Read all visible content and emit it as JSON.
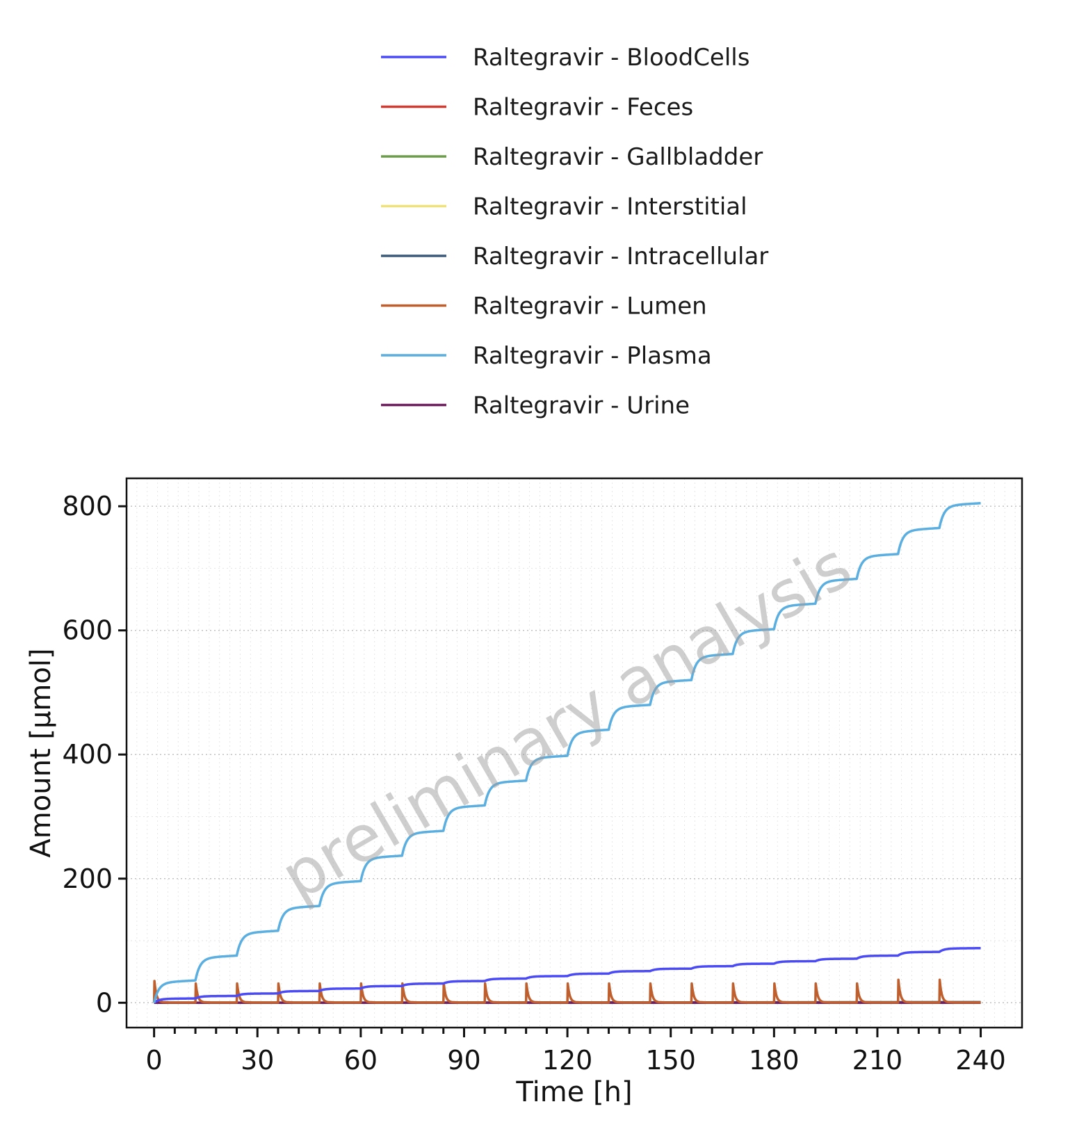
{
  "chart_data": {
    "type": "line",
    "xlabel": "Time [h]",
    "ylabel": "Amount [µmol]",
    "xlim": [
      -8,
      252
    ],
    "ylim": [
      -40,
      845
    ],
    "xticks": [
      0,
      30,
      60,
      90,
      120,
      150,
      180,
      210,
      240
    ],
    "yticks": [
      0,
      200,
      400,
      600,
      800
    ],
    "grid": true,
    "legend_position": "top",
    "watermark": "preliminary analysis",
    "dosing_interval_h": 12,
    "series": [
      {
        "name": "Raltegravir - BloodCells",
        "color": "#4b4bf5",
        "x": [
          0,
          12,
          24,
          36,
          48,
          60,
          72,
          84,
          96,
          108,
          120,
          132,
          144,
          156,
          168,
          180,
          192,
          204,
          216,
          228,
          240
        ],
        "y": [
          0,
          7,
          11,
          15,
          19,
          23,
          27,
          31,
          35,
          39,
          43,
          47,
          51,
          55,
          59,
          63,
          67,
          71,
          76,
          82,
          88
        ]
      },
      {
        "name": "Raltegravir - Feces",
        "color": "#d03b32",
        "x": [
          0,
          240
        ],
        "y": [
          0,
          0
        ]
      },
      {
        "name": "Raltegravir - Gallbladder",
        "color": "#6b9e48",
        "x": [
          0,
          240
        ],
        "y": [
          0,
          0
        ]
      },
      {
        "name": "Raltegravir - Interstitial",
        "color": "#f0e27a",
        "x": [
          0,
          240
        ],
        "y": [
          0,
          1
        ]
      },
      {
        "name": "Raltegravir - Intracellular",
        "color": "#3d5a78",
        "x": [
          0,
          240
        ],
        "y": [
          0,
          1
        ]
      },
      {
        "name": "Raltegravir - Lumen",
        "color": "#bf5f2e",
        "x": [
          0,
          12,
          24,
          36,
          48,
          60,
          72,
          84,
          96,
          108,
          120,
          132,
          144,
          156,
          168,
          180,
          192,
          204,
          216,
          228
        ],
        "y": [
          35,
          31,
          31,
          31,
          31,
          31,
          31,
          31,
          31,
          31,
          31,
          31,
          31,
          31,
          31,
          31,
          31,
          31,
          37,
          37
        ]
      },
      {
        "name": "Raltegravir - Plasma",
        "color": "#5aafe0",
        "x": [
          0,
          12,
          24,
          36,
          48,
          60,
          72,
          84,
          96,
          108,
          120,
          132,
          144,
          156,
          168,
          180,
          192,
          204,
          216,
          228,
          240
        ],
        "y": [
          0,
          36,
          76,
          116,
          156,
          196,
          237,
          277,
          318,
          358,
          398,
          440,
          480,
          520,
          562,
          602,
          643,
          683,
          723,
          765,
          805
        ]
      },
      {
        "name": "Raltegravir - Urine",
        "color": "#6e1f5e",
        "x": [
          0,
          240
        ],
        "y": [
          0,
          0
        ]
      }
    ]
  }
}
